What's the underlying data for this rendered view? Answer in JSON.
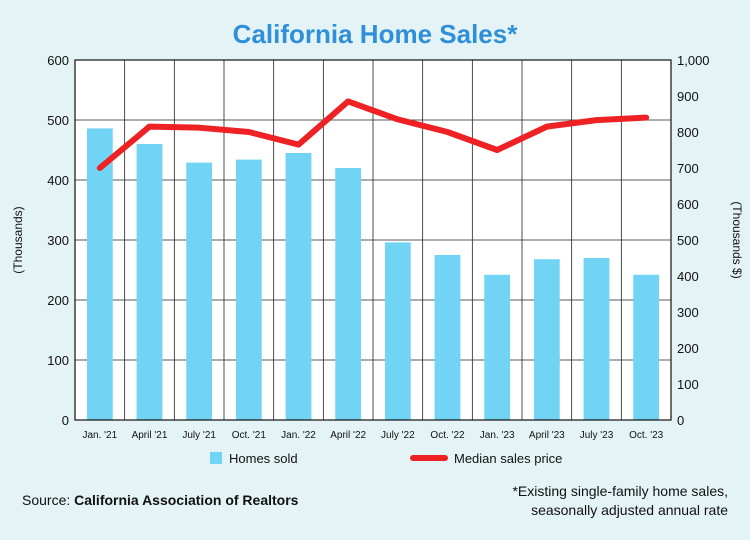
{
  "chart_data": {
    "type": "bar+line",
    "title": "California Home Sales*",
    "categories": [
      "Jan. '21",
      "April '21",
      "July '21",
      "Oct. '21",
      "Jan. '22",
      "April '22",
      "July '22",
      "Oct. '22",
      "Jan. '23",
      "April '23",
      "July '23",
      "Oct. '23"
    ],
    "series": [
      {
        "name": "Homes sold",
        "type": "bar",
        "axis": "left",
        "color": "#72d4f5",
        "values": [
          486,
          460,
          429,
          434,
          445,
          420,
          296,
          275,
          242,
          268,
          270,
          242
        ]
      },
      {
        "name": "Median sales price",
        "type": "line",
        "axis": "right",
        "color": "#ee2124",
        "values": [
          700,
          815,
          812,
          800,
          765,
          885,
          835,
          800,
          750,
          815,
          833,
          840
        ]
      }
    ],
    "y_left": {
      "label": "(Thousands)",
      "range": [
        0,
        600
      ],
      "ticks": [
        "0",
        "100",
        "200",
        "300",
        "400",
        "500",
        "600"
      ]
    },
    "y_right": {
      "label": "(Thousands $)",
      "range": [
        0,
        1000
      ],
      "ticks": [
        "0",
        "100",
        "200",
        "300",
        "400",
        "500",
        "600",
        "700",
        "800",
        "900",
        "1,000"
      ]
    },
    "grid": true,
    "legend_placement": "bottom"
  },
  "source": {
    "prefix": "Source: ",
    "org": "California Association of Realtors"
  },
  "footnote": {
    "line1": "*Existing single-family home sales,",
    "line2": "seasonally adjusted annual rate"
  }
}
